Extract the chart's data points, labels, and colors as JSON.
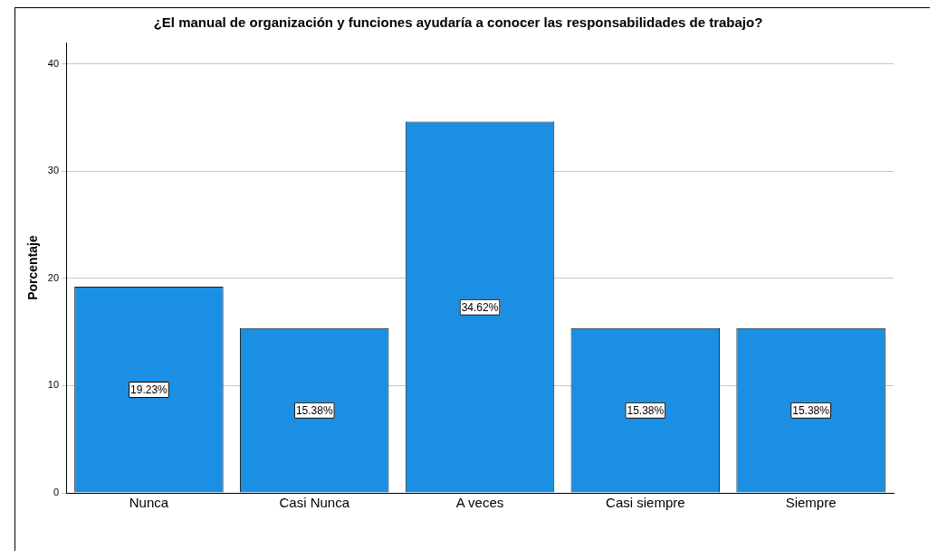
{
  "chart_data": {
    "type": "bar",
    "title": "¿El manual de organización y funciones ayudaría a conocer las responsabilidades de trabajo?",
    "ylabel": "Porcentaje",
    "categories": [
      "Nunca",
      "Casi Nunca",
      "A veces",
      "Casi siempre",
      "Siempre"
    ],
    "values": [
      19.23,
      15.38,
      34.62,
      15.38,
      15.38
    ],
    "value_labels": [
      "19.23%",
      "15.38%",
      "34.62%",
      "15.38%",
      "15.38%"
    ],
    "color": "#1a8fe3",
    "ylim": [
      0,
      42
    ],
    "yticks": [
      0,
      10,
      20,
      30,
      40
    ],
    "grid": "y"
  }
}
